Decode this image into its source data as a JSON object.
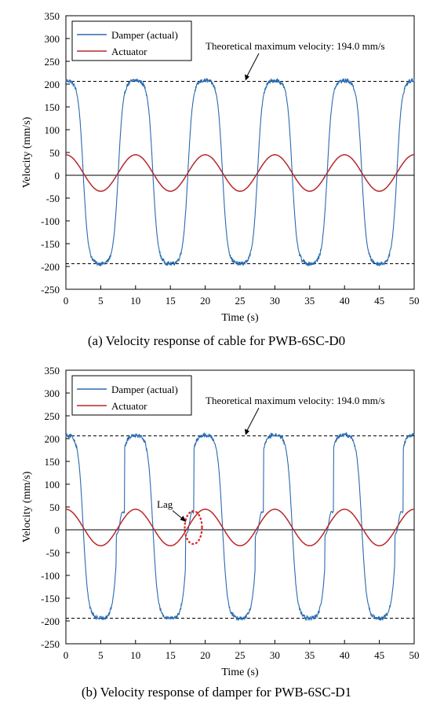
{
  "chart_data": [
    {
      "type": "line",
      "caption": "(a) Velocity response of cable for PWB-6SC-D0",
      "xlabel": "Time (s)",
      "ylabel": "Velocity (mm/s)",
      "xlim": [
        0,
        50
      ],
      "ylim": [
        -250,
        350
      ],
      "xticks": [
        0,
        5,
        10,
        15,
        20,
        25,
        30,
        35,
        40,
        45,
        50
      ],
      "yticks": [
        -250,
        -200,
        -150,
        -100,
        -50,
        0,
        50,
        100,
        150,
        200,
        250,
        300,
        350
      ],
      "legend": [
        "Damper (actual)",
        "Actuator"
      ],
      "legend_position": "top-left",
      "annotation": "Theoretical maximum velocity: 194.0 mm/s",
      "reference_lines": [
        206,
        -194
      ],
      "series": [
        {
          "name": "Damper (actual)",
          "color": "#2a6ab0",
          "period": 10,
          "phase_peak": 0,
          "max": 208,
          "min": -194,
          "shape": "flattened-sinusoid-with-noise"
        },
        {
          "name": "Actuator",
          "color": "#b8282a",
          "period": 10,
          "max": 45,
          "min": -35,
          "x": [
            0,
            5,
            10,
            15,
            20,
            25,
            30,
            35,
            40,
            45,
            50
          ],
          "y": [
            45,
            -35,
            45,
            -35,
            45,
            -35,
            45,
            -35,
            45,
            -35,
            45
          ]
        }
      ]
    },
    {
      "type": "line",
      "caption": "(b) Velocity response of damper for PWB-6SC-D1",
      "xlabel": "Time (s)",
      "ylabel": "Velocity (mm/s)",
      "xlim": [
        0,
        50
      ],
      "ylim": [
        -250,
        350
      ],
      "xticks": [
        0,
        5,
        10,
        15,
        20,
        25,
        30,
        35,
        40,
        45,
        50
      ],
      "yticks": [
        -250,
        -200,
        -150,
        -100,
        -50,
        0,
        50,
        100,
        150,
        200,
        250,
        300,
        350
      ],
      "legend": [
        "Damper (actual)",
        "Actuator"
      ],
      "legend_position": "top-left",
      "annotation": "Theoretical maximum velocity: 194.0 mm/s",
      "callout": "Lag",
      "reference_lines": [
        206,
        -194
      ],
      "series": [
        {
          "name": "Damper (actual)",
          "color": "#2a6ab0",
          "period": 10,
          "phase_peak": 0,
          "max": 208,
          "min": -194,
          "shape": "flattened-sinusoid-with-lag-noise"
        },
        {
          "name": "Actuator",
          "color": "#b8282a",
          "period": 10,
          "max": 45,
          "min": -35,
          "x": [
            0,
            5,
            10,
            15,
            20,
            25,
            30,
            35,
            40,
            45,
            50
          ],
          "y": [
            45,
            -35,
            45,
            -35,
            45,
            -35,
            45,
            -35,
            45,
            -35,
            45
          ]
        }
      ]
    }
  ],
  "colors": {
    "damper": "#2a6ab0",
    "actuator": "#b8282a",
    "lag_circle": "#e0262a"
  }
}
